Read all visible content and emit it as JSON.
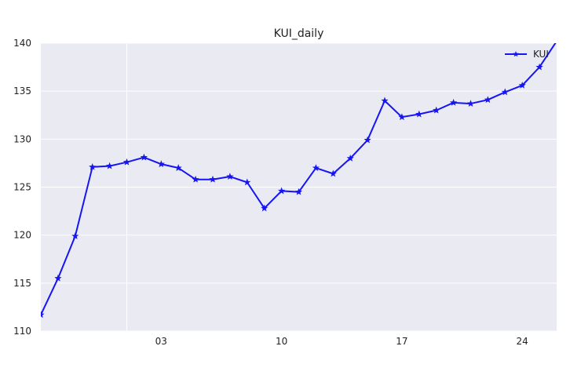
{
  "chart_data": {
    "type": "line",
    "title": "KUI_daily",
    "xlabel": "",
    "ylabel": "",
    "x": [
      "2017-06-26",
      "2017-06-27",
      "2017-06-28",
      "2017-06-29",
      "2017-06-30",
      "2017-07-01",
      "2017-07-02",
      "2017-07-03",
      "2017-07-04",
      "2017-07-05",
      "2017-07-06",
      "2017-07-07",
      "2017-07-08",
      "2017-07-09",
      "2017-07-10",
      "2017-07-11",
      "2017-07-12",
      "2017-07-13",
      "2017-07-14",
      "2017-07-15",
      "2017-07-16",
      "2017-07-17",
      "2017-07-18",
      "2017-07-19",
      "2017-07-20",
      "2017-07-21",
      "2017-07-22",
      "2017-07-23",
      "2017-07-24",
      "2017-07-25",
      "2017-07-26"
    ],
    "xlim": [
      "2017-06-26",
      "2017-07-26"
    ],
    "xticks": [
      "2017-07-03",
      "2017-07-10",
      "2017-07-17",
      "2017-07-24"
    ],
    "xtick_labels": [
      "03",
      "10",
      "17",
      "24"
    ],
    "x_major_gridline": "2017-07-01",
    "ylim": [
      110,
      140
    ],
    "yticks": [
      110,
      115,
      120,
      125,
      130,
      135,
      140
    ],
    "grid": true,
    "legend_position": "top-right",
    "series": [
      {
        "name": "KUI",
        "color": "#1515f5",
        "marker": "star",
        "values": [
          111.7,
          115.5,
          119.9,
          127.1,
          127.2,
          127.6,
          128.1,
          127.4,
          127.0,
          125.8,
          125.8,
          126.1,
          125.5,
          122.8,
          124.6,
          124.5,
          127.0,
          126.4,
          128.0,
          129.9,
          134.0,
          132.3,
          132.6,
          133.0,
          133.8,
          133.7,
          134.1,
          134.9,
          135.6,
          137.5,
          140.2
        ]
      }
    ]
  },
  "colors": {
    "plot_background": "#eaeaf2",
    "grid": "#ffffff"
  }
}
